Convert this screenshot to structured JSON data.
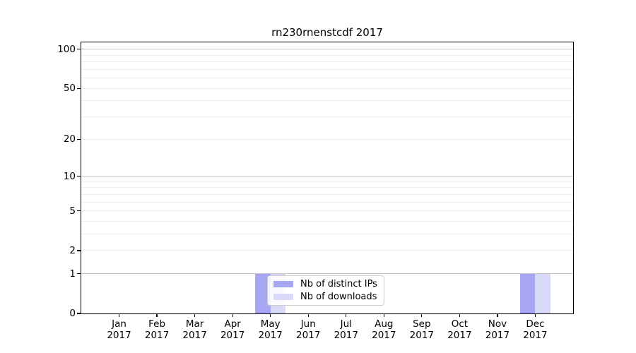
{
  "chart_data": {
    "type": "bar",
    "title": "rn230rnenstcdf 2017",
    "year": "2017",
    "months": [
      "Jan",
      "Feb",
      "Mar",
      "Apr",
      "May",
      "Jun",
      "Jul",
      "Aug",
      "Sep",
      "Oct",
      "Nov",
      "Dec"
    ],
    "categories": [
      "Jan 2017",
      "Feb 2017",
      "Mar 2017",
      "Apr 2017",
      "May 2017",
      "Jun 2017",
      "Jul 2017",
      "Aug 2017",
      "Sep 2017",
      "Oct 2017",
      "Nov 2017",
      "Dec 2017"
    ],
    "series": [
      {
        "key": "distinct-ips",
        "name": "Nb of distinct IPs",
        "color": "#a6a6f2",
        "values": [
          0,
          0,
          0,
          0,
          1,
          0,
          0,
          0,
          0,
          0,
          0,
          1
        ]
      },
      {
        "key": "downloads",
        "name": "Nb of downloads",
        "color": "#d9d9f8",
        "values": [
          0,
          0,
          0,
          0,
          1,
          0,
          0,
          0,
          0,
          0,
          0,
          1
        ]
      }
    ],
    "yscale": "log1p",
    "ylim": [
      0,
      113
    ],
    "ytick_values": [
      0,
      1,
      2,
      5,
      10,
      20,
      50,
      100
    ],
    "ytick_labels": [
      "0",
      "1",
      "2",
      "5",
      "10",
      "20",
      "50",
      "100"
    ],
    "grid": {
      "on": true,
      "major_values": [
        1,
        10,
        100
      ],
      "minor_values": [
        2,
        3,
        4,
        5,
        6,
        7,
        8,
        9,
        20,
        30,
        40,
        50,
        60,
        70,
        80,
        90
      ],
      "major_color": "#c3c3c3",
      "minor_color": "#ececec"
    },
    "legend": {
      "position": "lower center-left",
      "entries": [
        "Nb of distinct IPs",
        "Nb of downloads"
      ]
    }
  }
}
